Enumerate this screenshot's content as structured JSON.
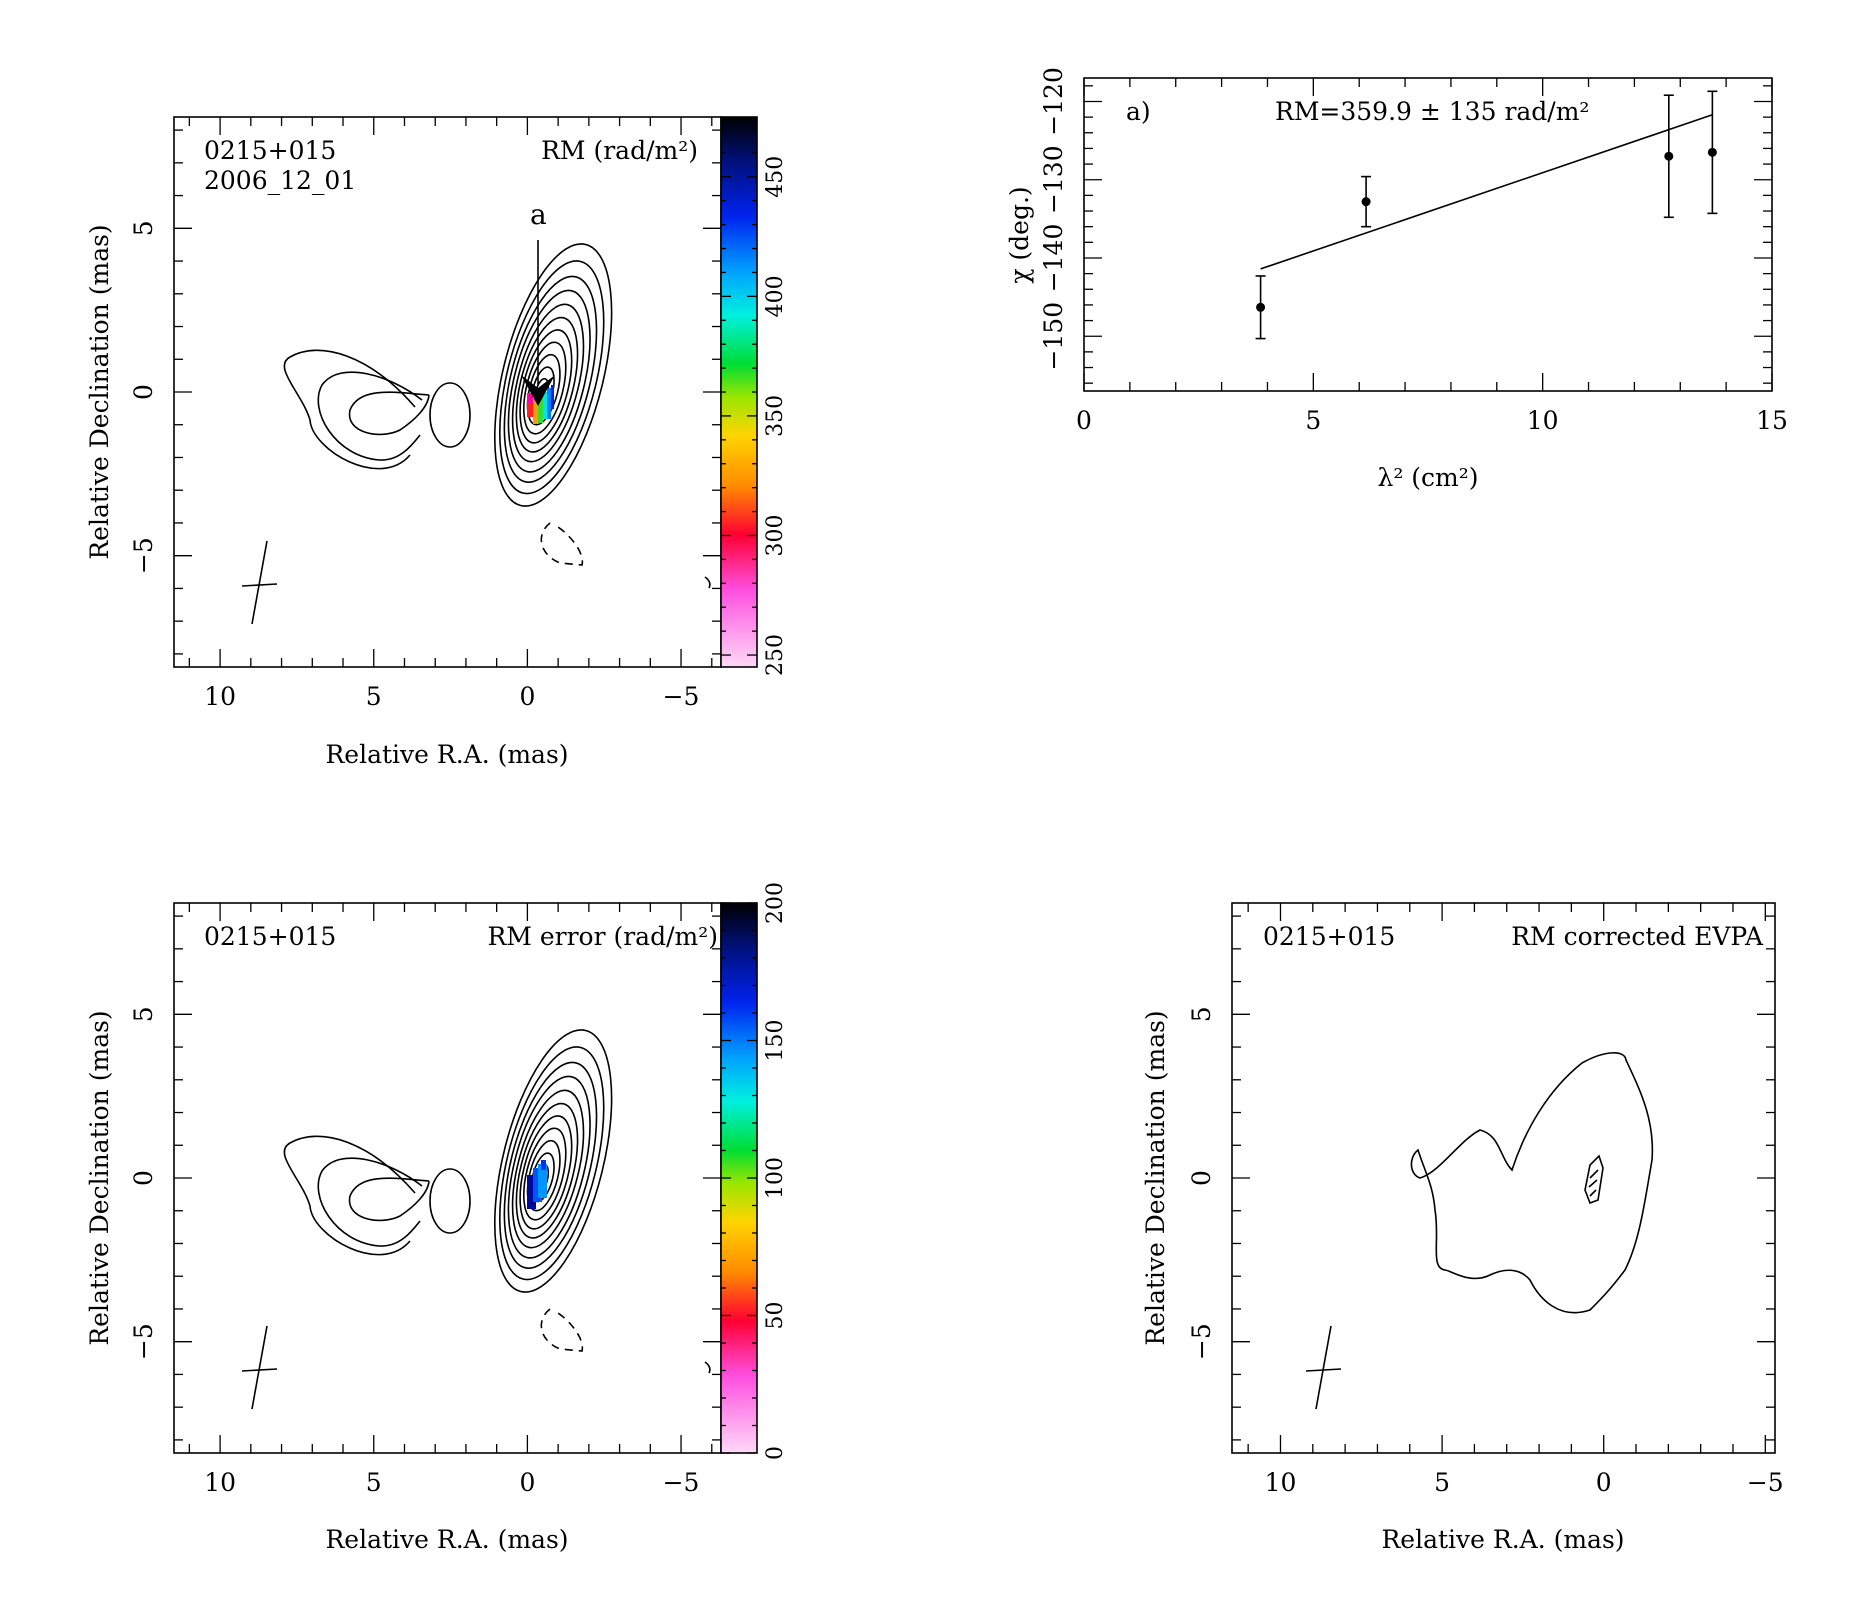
{
  "chart_data": [
    {
      "id": "rm_map",
      "type": "heatmap",
      "source": "0215+015",
      "epoch": "2006_12_01",
      "title": "RM (rad/m²)",
      "xlabel": "Relative R.A. (mas)",
      "ylabel": "Relative Declination (mas)",
      "xlim": [
        11.5,
        -6.3
      ],
      "ylim": [
        -8.4,
        8.4
      ],
      "xticks": [
        "10",
        "5",
        "0",
        "−5"
      ],
      "yticks": [
        "−5",
        "0",
        "5"
      ],
      "marker_label": "a",
      "colorbar": {
        "min": 245,
        "max": 475,
        "ticks": [
          "250",
          "300",
          "350",
          "400",
          "450"
        ]
      }
    },
    {
      "id": "rm_fit",
      "type": "scatter",
      "panel_label": "a)",
      "annotation": "RM=359.9 ± 135 rad/m²",
      "xlabel": "λ² (cm²)",
      "ylabel": "χ (deg.)",
      "xlim": [
        0,
        15
      ],
      "ylim": [
        -157,
        -117
      ],
      "xticks": [
        "0",
        "5",
        "10",
        "15"
      ],
      "yticks": [
        "−150",
        "−140",
        "−130",
        "−120"
      ],
      "points": [
        {
          "x": 3.85,
          "y": -146.3,
          "err": 4.0
        },
        {
          "x": 6.15,
          "y": -132.8,
          "err": 3.2
        },
        {
          "x": 12.75,
          "y": -127.0,
          "err": 7.8
        },
        {
          "x": 13.7,
          "y": -126.5,
          "err": 7.8
        }
      ],
      "fit": {
        "x": [
          3.85,
          13.7
        ],
        "y": [
          -141.4,
          -121.7
        ]
      }
    },
    {
      "id": "rm_error_map",
      "type": "heatmap",
      "source": "0215+015",
      "title": "RM error (rad/m²)",
      "xlabel": "Relative R.A. (mas)",
      "ylabel": "Relative Declination (mas)",
      "xlim": [
        11.5,
        -6.3
      ],
      "ylim": [
        -8.4,
        8.4
      ],
      "xticks": [
        "10",
        "5",
        "0",
        "−5"
      ],
      "yticks": [
        "−5",
        "0",
        "5"
      ],
      "colorbar": {
        "min": 0,
        "max": 200,
        "ticks": [
          "0",
          "50",
          "100",
          "150",
          "200"
        ]
      }
    },
    {
      "id": "evpa_map",
      "type": "scatter",
      "source": "0215+015",
      "title": "RM corrected EVPA",
      "xlabel": "Relative R.A. (mas)",
      "ylabel": "Relative Declination (mas)",
      "xlim": [
        11.5,
        -5.3
      ],
      "ylim": [
        -8.4,
        8.4
      ],
      "xticks": [
        "10",
        "5",
        "0",
        "−5"
      ],
      "yticks": [
        "−5",
        "0",
        "5"
      ]
    }
  ],
  "colors": {
    "axes": "#000000",
    "background": "#ffffff"
  }
}
